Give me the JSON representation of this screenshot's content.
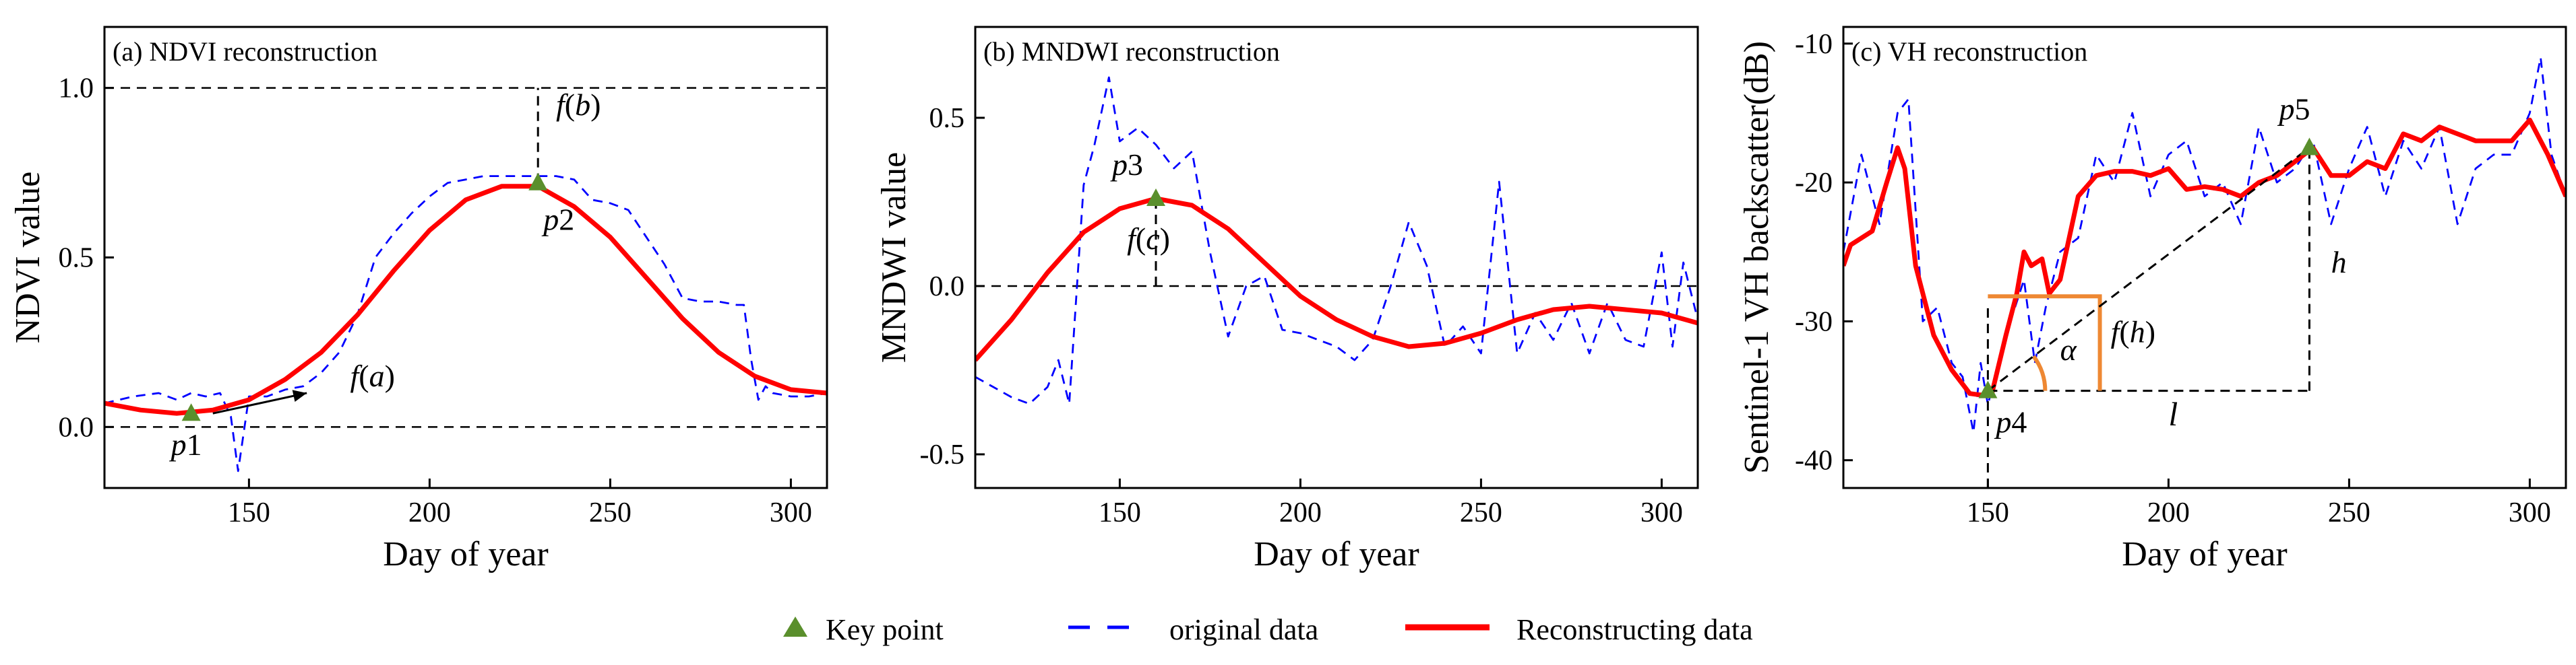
{
  "chart_data": [
    {
      "type": "line",
      "title": "(a) NDVI reconstruction",
      "xlabel": "Day of year",
      "ylabel": "NDVI value",
      "xlim": [
        110,
        310
      ],
      "ylim": [
        -0.18,
        1.18
      ],
      "xticks": [
        150,
        200,
        250,
        300
      ],
      "yticks": [
        0.0,
        0.5,
        1.0
      ],
      "ytick_labels": [
        "0.0",
        "0.5",
        "1.0"
      ],
      "ref_lines": [
        0.0,
        1.0
      ],
      "series": [
        {
          "name": "original data",
          "style": "dashed",
          "color": "#0000ff",
          "x": [
            110,
            118,
            125,
            130,
            134,
            138,
            142,
            145,
            147,
            150,
            155,
            160,
            165,
            170,
            175,
            180,
            185,
            190,
            195,
            200,
            205,
            210,
            215,
            220,
            225,
            230,
            235,
            240,
            245,
            250,
            255,
            260,
            265,
            270,
            275,
            280,
            285,
            287,
            289,
            291,
            293,
            295,
            300,
            305,
            310
          ],
          "y": [
            0.07,
            0.09,
            0.1,
            0.08,
            0.1,
            0.09,
            0.1,
            0.03,
            -0.13,
            0.09,
            0.09,
            0.11,
            0.12,
            0.16,
            0.22,
            0.33,
            0.5,
            0.57,
            0.63,
            0.68,
            0.72,
            0.73,
            0.74,
            0.74,
            0.74,
            0.74,
            0.74,
            0.73,
            0.67,
            0.66,
            0.64,
            0.56,
            0.48,
            0.38,
            0.37,
            0.37,
            0.36,
            0.36,
            0.2,
            0.08,
            0.12,
            0.1,
            0.09,
            0.09,
            0.1
          ]
        },
        {
          "name": "Reconstructing data",
          "style": "solid",
          "color": "#ff0000",
          "x": [
            110,
            120,
            130,
            140,
            150,
            160,
            170,
            180,
            190,
            200,
            210,
            220,
            230,
            240,
            250,
            260,
            270,
            280,
            290,
            300,
            310
          ],
          "y": [
            0.07,
            0.05,
            0.04,
            0.05,
            0.08,
            0.14,
            0.22,
            0.33,
            0.46,
            0.58,
            0.67,
            0.71,
            0.71,
            0.65,
            0.56,
            0.44,
            0.32,
            0.22,
            0.15,
            0.11,
            0.1
          ]
        }
      ],
      "key_points": [
        {
          "label": "p1",
          "x": 134,
          "y": 0.04
        },
        {
          "label": "p2",
          "x": 230,
          "y": 0.72
        }
      ],
      "annotations": [
        {
          "text": "f(a)",
          "type": "arrow",
          "from": [
            140,
            0.04
          ],
          "to": [
            166,
            0.1
          ],
          "label_at": [
            178,
            0.12
          ]
        },
        {
          "text": "f(b)",
          "type": "vline",
          "x": 230,
          "y0": 0.72,
          "y1": 1.0,
          "label_at": [
            235,
            0.92
          ]
        }
      ]
    },
    {
      "type": "line",
      "title": "(b) MNDWI reconstruction",
      "xlabel": "Day of year",
      "ylabel": "MNDWI value",
      "xlim": [
        110,
        310
      ],
      "ylim": [
        -0.6,
        0.77
      ],
      "xticks": [
        150,
        200,
        250,
        300
      ],
      "yticks": [
        -0.5,
        0.0,
        0.5
      ],
      "ytick_labels": [
        "-0.5",
        "0.0",
        "0.5"
      ],
      "ref_lines": [
        0.0
      ],
      "series": [
        {
          "name": "original data",
          "style": "dashed",
          "color": "#0000ff",
          "x": [
            110,
            115,
            120,
            125,
            130,
            133,
            136,
            140,
            143,
            147,
            150,
            155,
            160,
            165,
            170,
            175,
            180,
            185,
            190,
            195,
            200,
            205,
            210,
            215,
            220,
            225,
            230,
            235,
            240,
            245,
            250,
            255,
            260,
            265,
            270,
            275,
            280,
            285,
            290,
            295,
            300,
            303,
            306,
            310
          ],
          "y": [
            -0.27,
            -0.3,
            -0.33,
            -0.35,
            -0.3,
            -0.22,
            -0.35,
            0.3,
            0.42,
            0.62,
            0.43,
            0.47,
            0.42,
            0.35,
            0.4,
            0.1,
            -0.15,
            0.0,
            0.03,
            -0.13,
            -0.14,
            -0.16,
            -0.18,
            -0.22,
            -0.16,
            0.0,
            0.19,
            0.06,
            -0.18,
            -0.12,
            -0.2,
            0.31,
            -0.2,
            -0.08,
            -0.16,
            -0.05,
            -0.2,
            -0.05,
            -0.16,
            -0.18,
            0.1,
            -0.18,
            0.07,
            -0.1
          ]
        },
        {
          "name": "Reconstructing data",
          "style": "solid",
          "color": "#ff0000",
          "x": [
            110,
            120,
            130,
            140,
            150,
            160,
            170,
            180,
            190,
            200,
            210,
            220,
            230,
            240,
            250,
            260,
            270,
            280,
            290,
            300,
            310
          ],
          "y": [
            -0.22,
            -0.1,
            0.04,
            0.16,
            0.23,
            0.26,
            0.24,
            0.17,
            0.07,
            -0.03,
            -0.1,
            -0.15,
            -0.18,
            -0.17,
            -0.14,
            -0.1,
            -0.07,
            -0.06,
            -0.07,
            -0.08,
            -0.11
          ]
        }
      ],
      "key_points": [
        {
          "label": "p3",
          "x": 160,
          "y": 0.26
        }
      ],
      "annotations": [
        {
          "text": "f(c)",
          "type": "vline",
          "x": 160,
          "y0": 0.0,
          "y1": 0.26,
          "label_at": [
            152,
            0.11
          ]
        }
      ]
    },
    {
      "type": "line",
      "title": "(c) VH reconstruction",
      "xlabel": "Day of year",
      "ylabel": "Sentinel-1 VH backscatter(dB)",
      "xlim": [
        110,
        310
      ],
      "ylim": [
        -42,
        -8.8
      ],
      "xticks": [
        150,
        200,
        250,
        300
      ],
      "yticks": [
        -40,
        -30,
        -20,
        -10
      ],
      "ytick_labels": [
        "-40",
        "-30",
        "-20",
        "-10"
      ],
      "ref_lines": [],
      "series": [
        {
          "name": "original data",
          "style": "dashed",
          "color": "#0000ff",
          "x": [
            110,
            115,
            120,
            125,
            128,
            132,
            136,
            140,
            143,
            146,
            148,
            150,
            155,
            160,
            163,
            166,
            170,
            175,
            180,
            185,
            190,
            195,
            200,
            205,
            210,
            215,
            220,
            225,
            230,
            235,
            240,
            245,
            250,
            255,
            260,
            265,
            270,
            275,
            280,
            285,
            290,
            295,
            300,
            303,
            306,
            310
          ],
          "y": [
            -25,
            -18,
            -23,
            -15,
            -14,
            -30,
            -29,
            -33,
            -34,
            -38,
            -33,
            -36,
            -31,
            -27,
            -33,
            -29,
            -25,
            -24,
            -18,
            -20,
            -15,
            -21,
            -18,
            -17,
            -21,
            -20,
            -23,
            -16,
            -20,
            -19,
            -17,
            -23,
            -19,
            -16,
            -21,
            -17,
            -19,
            -16,
            -23,
            -19,
            -18,
            -18,
            -15,
            -11,
            -18,
            -21
          ]
        },
        {
          "name": "Reconstructing data",
          "style": "solid",
          "color": "#ff0000",
          "x": [
            110,
            112,
            118,
            122,
            125,
            127,
            130,
            135,
            140,
            145,
            148,
            151,
            155,
            158,
            160,
            162,
            165,
            167,
            170,
            175,
            180,
            185,
            190,
            195,
            200,
            205,
            210,
            215,
            220,
            225,
            230,
            235,
            240,
            245,
            250,
            255,
            260,
            265,
            270,
            275,
            280,
            285,
            290,
            295,
            300,
            305,
            310
          ],
          "y": [
            -26,
            -24.5,
            -23.5,
            -20,
            -17.5,
            -19,
            -26,
            -31,
            -33.5,
            -35.2,
            -35.3,
            -35.3,
            -31,
            -28,
            -25,
            -26,
            -25.5,
            -28,
            -27,
            -21,
            -19.5,
            -19.2,
            -19.2,
            -19.5,
            -19,
            -20.5,
            -20.3,
            -20.5,
            -21,
            -20,
            -19.5,
            -18.5,
            -17.5,
            -19.5,
            -19.5,
            -18.5,
            -19,
            -16.5,
            -17,
            -16,
            -16.5,
            -17,
            -17,
            -17,
            -15.5,
            -18,
            -21
          ]
        }
      ],
      "key_points": [
        {
          "label": "p4",
          "x": 150,
          "y": -35
        },
        {
          "label": "p5",
          "x": 239,
          "y": -17.5
        }
      ],
      "annotations": [
        {
          "text": "h",
          "type": "vline",
          "x": 239,
          "y0": -35,
          "y1": -17.5,
          "label_at": [
            245,
            -26.5
          ]
        },
        {
          "text": "l",
          "type": "hline",
          "y": -35,
          "x0": 150,
          "x1": 239,
          "label_at": [
            200,
            -37.5
          ]
        },
        {
          "text": "f(h)",
          "type": "bracket",
          "x0": 150,
          "x1": 181,
          "y0": -35,
          "y1": -28.2,
          "label_at": [
            184,
            -31.5
          ]
        },
        {
          "text": "α",
          "type": "angle",
          "at": [
            150,
            -35
          ],
          "label_at": [
            170,
            -32.8
          ]
        },
        {
          "text": "",
          "type": "vline-full",
          "x": 150,
          "y0": -42,
          "y1": -29
        }
      ]
    }
  ],
  "legend": {
    "placement": "bottom",
    "items": [
      {
        "label": "Key point",
        "marker": "triangle",
        "color": "#5a8f2c"
      },
      {
        "label": "original data",
        "marker": "dashed-line",
        "color": "#0000ff"
      },
      {
        "label": "Reconstructing data",
        "marker": "solid-line",
        "color": "#ff0000"
      }
    ]
  },
  "colors": {
    "original": "#0000ff",
    "reconstructed": "#ff0000",
    "key_point": "#5a8f2c",
    "construction": "#ee8833"
  }
}
